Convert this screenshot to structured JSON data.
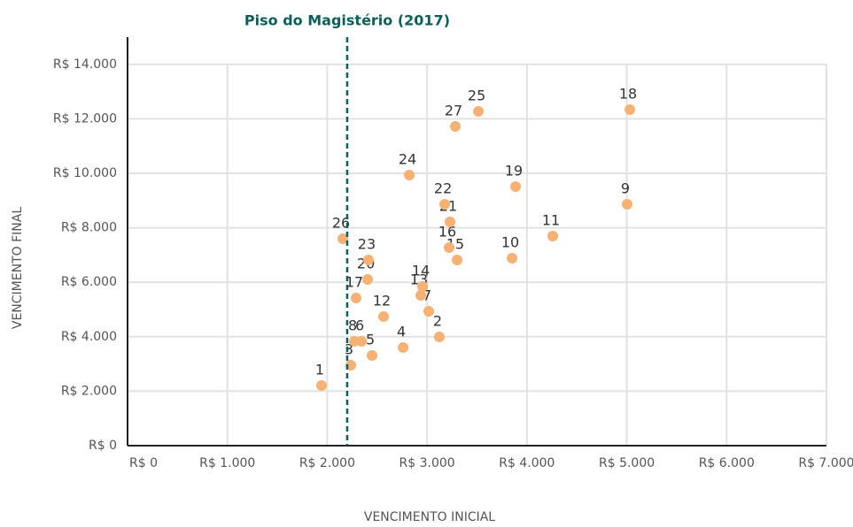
{
  "chart_data": {
    "type": "scatter",
    "annotation": "Piso do Magistério (2017)",
    "annotation_x": 2200,
    "annotation_color": "#0b5f5a",
    "x_label": "VENCIMENTO INICIAL",
    "y_label": "VENCIMENTO FINAL",
    "color": "#f7b173",
    "grid": true,
    "point_labels": [
      "1",
      "2",
      "3",
      "4",
      "5",
      "6",
      "7",
      "8",
      "9",
      "10",
      "11",
      "12",
      "13",
      "14",
      "15",
      "16",
      "17",
      "18",
      "19",
      "20",
      "21",
      "22",
      "23",
      "24",
      "25",
      "26",
      "27"
    ],
    "x": [
      1943,
      3123,
      2236,
      2760,
      2449,
      2343,
      3017,
      2272,
      5004,
      3851,
      4259,
      2564,
      2937,
      2955,
      3301,
      3221,
      2289,
      5031,
      3886,
      2405,
      3230,
      3177,
      2413,
      2822,
      3514,
      2156,
      3283
    ],
    "y": [
      2208,
      3994,
      2955,
      3604,
      3312,
      3831,
      4935,
      3831,
      8864,
      6883,
      7695,
      4740,
      5519,
      5844,
      6818,
      7273,
      5422,
      12338,
      9513,
      6104,
      8214,
      8864,
      6818,
      9935,
      12273,
      7597,
      11721
    ],
    "xlim": [
      0,
      7000
    ],
    "xticks": [
      {
        "value": 0,
        "label": "R$ 0"
      },
      {
        "value": 1000,
        "label": "R$ 1.000"
      },
      {
        "value": 2000,
        "label": "R$ 2.000"
      },
      {
        "value": 3000,
        "label": "R$ 3.000"
      },
      {
        "value": 4000,
        "label": "R$ 4.000"
      },
      {
        "value": 5000,
        "label": "R$ 5.000"
      },
      {
        "value": 6000,
        "label": "R$ 6.000"
      },
      {
        "value": 7000,
        "label": "R$ 7.000"
      }
    ],
    "ylim": [
      0,
      15000
    ],
    "yticks": [
      {
        "value": 0,
        "label": "R$ 0"
      },
      {
        "value": 2000,
        "label": "R$ 2.000"
      },
      {
        "value": 4000,
        "label": "R$ 4.000"
      },
      {
        "value": 6000,
        "label": "R$ 6.000"
      },
      {
        "value": 8000,
        "label": "R$ 8.000"
      },
      {
        "value": 10000,
        "label": "R$ 10.000"
      },
      {
        "value": 12000,
        "label": "R$ 12.000"
      },
      {
        "value": 14000,
        "label": "R$ 14.000"
      }
    ]
  }
}
